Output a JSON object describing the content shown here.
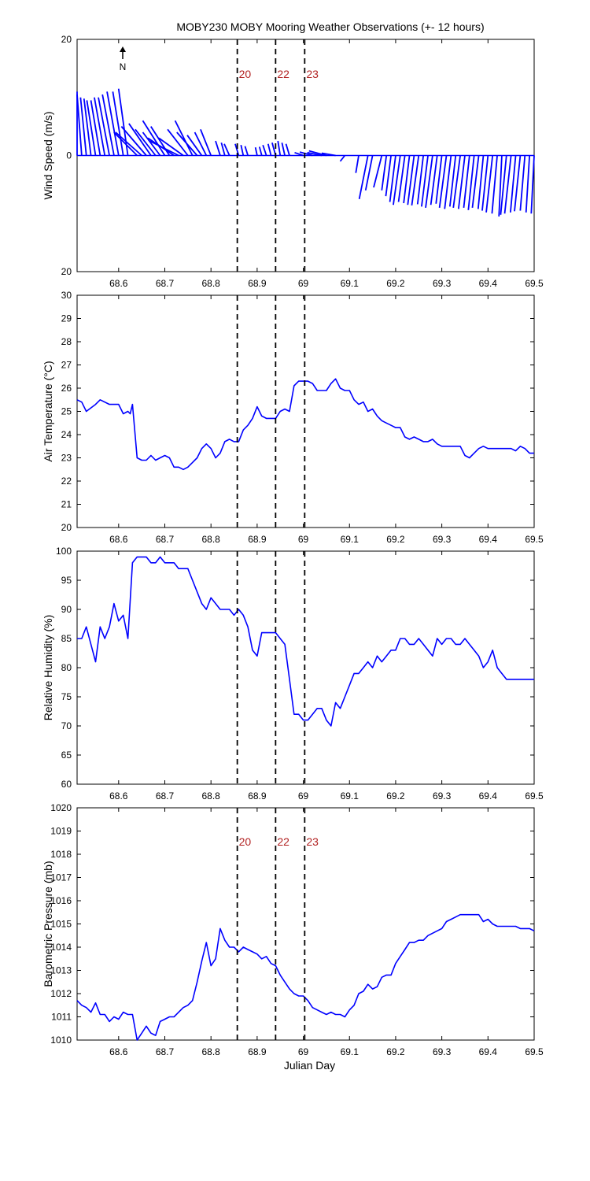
{
  "title": "MOBY230 MOBY Mooring Weather Observations (+- 12 hours)",
  "north_label": "N",
  "colors": {
    "series": "#0000ff",
    "marker_text": "#b22222",
    "axis": "#000000"
  },
  "markers": [
    {
      "x": 68.857,
      "label": "20"
    },
    {
      "x": 68.94,
      "label": "22"
    },
    {
      "x": 69.003,
      "label": "23"
    }
  ],
  "chart_data": [
    {
      "type": "quiver",
      "title": "MOBY230 MOBY Mooring Weather Observations (+- 12 hours)",
      "ylabel": "Wind Speed (m/s)",
      "xlabel": "",
      "xlim": [
        68.51,
        69.5
      ],
      "ylim": [
        -20,
        20
      ],
      "yticklabels": [
        "20",
        "0",
        "20"
      ],
      "xticks": [
        68.6,
        68.7,
        68.8,
        68.9,
        69,
        69.1,
        69.2,
        69.3,
        69.4,
        69.5
      ],
      "series": [
        {
          "x": [
            68.51,
            68.52,
            68.53,
            68.54,
            68.55,
            68.56,
            68.57,
            68.58,
            68.59,
            68.6,
            68.61,
            68.62,
            68.64,
            68.65,
            68.66,
            68.67,
            68.68,
            68.69,
            68.7,
            68.71,
            68.72,
            68.73,
            68.74,
            68.75,
            68.76,
            68.77,
            68.78,
            68.79,
            68.8,
            68.82,
            68.83,
            68.84,
            68.86,
            68.87,
            68.88,
            68.9,
            68.91,
            68.92,
            68.93,
            68.94,
            68.95,
            68.96,
            68.97,
            69.0,
            69.02,
            69.04,
            69.05,
            69.07,
            69.09,
            69.12,
            69.14,
            69.15,
            69.17,
            69.18,
            69.19,
            69.2,
            69.21,
            69.22,
            69.23,
            69.24,
            69.25,
            69.26,
            69.27,
            69.28,
            69.29,
            69.3,
            69.31,
            69.32,
            69.33,
            69.34,
            69.35,
            69.36,
            69.37,
            69.38,
            69.39,
            69.4,
            69.41,
            69.42,
            69.43,
            69.44,
            69.45,
            69.46,
            69.47,
            69.48,
            69.49,
            69.5
          ],
          "u": [
            -0.8,
            -0.9,
            -1.0,
            -1.2,
            -1.5,
            -1.6,
            -1.8,
            -1.9,
            -2.0,
            -2.0,
            -1.8,
            -1.6,
            -4.0,
            -4.5,
            -4.3,
            -3.8,
            -3.5,
            -3.0,
            -3.8,
            -3.2,
            -4.5,
            -5.0,
            -4.2,
            -3.5,
            -3.0,
            -3.5,
            -2.5,
            -2.0,
            -1.8,
            -0.8,
            -0.6,
            -0.9,
            -0.6,
            -0.4,
            -0.5,
            -0.3,
            -0.4,
            -0.6,
            -0.5,
            -0.6,
            -0.4,
            -0.5,
            -0.6,
            -1.5,
            -2.2,
            -2.5,
            -3.0,
            -2.4,
            -0.8,
            -0.5,
            -1.5,
            -1.2,
            -1.4,
            -0.8,
            -0.9,
            -1.0,
            -1.2,
            -1.1,
            -1.0,
            -1.1,
            -1.2,
            -1.0,
            -1.1,
            -1.2,
            -1.1,
            -1.0,
            -1.2,
            -1.1,
            -1.0,
            -1.2,
            -1.1,
            -1.0,
            -1.0,
            -1.1,
            -0.9,
            -1.0,
            -1.1,
            -0.9,
            -0.5,
            -1.0,
            -1.1,
            -0.9,
            -1.0,
            -0.8,
            -0.6,
            -0.5
          ],
          "v": [
            11,
            10.5,
            10,
            9.8,
            9.5,
            9.5,
            10,
            10,
            10.5,
            11,
            11,
            11.5,
            4,
            4,
            5,
            5.5,
            4.5,
            4,
            6,
            5,
            3,
            2.5,
            3,
            4.5,
            6,
            4,
            3.5,
            4,
            4.5,
            2.5,
            2.2,
            2,
            2,
            1.8,
            1.6,
            1.4,
            1.5,
            1.8,
            2,
            2.2,
            2.5,
            2.2,
            2.0,
            0.5,
            0.6,
            0.5,
            0.8,
            0.4,
            -1,
            -3,
            -7.5,
            -6,
            -5.5,
            -6,
            -7,
            -8,
            -8.5,
            -8,
            -8.2,
            -8.5,
            -8.6,
            -8.4,
            -8.8,
            -9,
            -8.5,
            -8.3,
            -9,
            -9.2,
            -8.8,
            -9,
            -9.2,
            -9,
            -9.4,
            -9,
            -9.2,
            -9.5,
            -9.8,
            -10,
            -10.5,
            -10.2,
            -10,
            -9.8,
            -9.6,
            -9.5,
            -9.8,
            -10
          ]
        }
      ]
    },
    {
      "type": "line",
      "ylabel": "Air Temperature (°C)",
      "xlabel": "",
      "xlim": [
        68.51,
        69.5
      ],
      "ylim": [
        20,
        30
      ],
      "yticks": [
        20,
        21,
        22,
        23,
        24,
        25,
        26,
        27,
        28,
        29,
        30
      ],
      "xticks": [
        68.6,
        68.7,
        68.8,
        68.9,
        69,
        69.1,
        69.2,
        69.3,
        69.4,
        69.5
      ],
      "series": [
        {
          "x": [
            68.51,
            68.52,
            68.53,
            68.55,
            68.56,
            68.58,
            68.59,
            68.6,
            68.61,
            68.62,
            68.625,
            68.63,
            68.64,
            68.65,
            68.66,
            68.67,
            68.68,
            68.69,
            68.7,
            68.71,
            68.72,
            68.73,
            68.74,
            68.75,
            68.76,
            68.77,
            68.78,
            68.79,
            68.8,
            68.81,
            68.82,
            68.83,
            68.84,
            68.85,
            68.86,
            68.87,
            68.88,
            68.89,
            68.9,
            68.91,
            68.92,
            68.93,
            68.94,
            68.95,
            68.96,
            68.97,
            68.98,
            68.99,
            69.0,
            69.01,
            69.02,
            69.03,
            69.04,
            69.05,
            69.06,
            69.07,
            69.08,
            69.09,
            69.1,
            69.11,
            69.12,
            69.13,
            69.14,
            69.15,
            69.16,
            69.17,
            69.18,
            69.19,
            69.2,
            69.21,
            69.22,
            69.23,
            69.24,
            69.25,
            69.26,
            69.27,
            69.28,
            69.29,
            69.3,
            69.31,
            69.32,
            69.33,
            69.34,
            69.35,
            69.36,
            69.37,
            69.38,
            69.39,
            69.4,
            69.41,
            69.42,
            69.43,
            69.44,
            69.45,
            69.46,
            69.47,
            69.48,
            69.49,
            69.5
          ],
          "y": [
            25.5,
            25.4,
            25.0,
            25.3,
            25.5,
            25.3,
            25.3,
            25.3,
            24.9,
            25.0,
            24.9,
            25.3,
            23.0,
            22.9,
            22.9,
            23.1,
            22.9,
            23.0,
            23.1,
            23.0,
            22.6,
            22.6,
            22.5,
            22.6,
            22.8,
            23.0,
            23.4,
            23.6,
            23.4,
            23.0,
            23.2,
            23.7,
            23.8,
            23.7,
            23.7,
            24.2,
            24.4,
            24.7,
            25.2,
            24.8,
            24.7,
            24.7,
            24.7,
            25.0,
            25.1,
            25.0,
            26.1,
            26.3,
            26.3,
            26.3,
            26.2,
            25.9,
            25.9,
            25.9,
            26.2,
            26.4,
            26.0,
            25.9,
            25.9,
            25.5,
            25.3,
            25.4,
            25.0,
            25.1,
            24.8,
            24.6,
            24.5,
            24.4,
            24.3,
            24.3,
            23.9,
            23.8,
            23.9,
            23.8,
            23.7,
            23.7,
            23.8,
            23.6,
            23.5,
            23.5,
            23.5,
            23.5,
            23.5,
            23.1,
            23.0,
            23.2,
            23.4,
            23.5,
            23.4,
            23.4,
            23.4,
            23.4,
            23.4,
            23.4,
            23.3,
            23.5,
            23.4,
            23.2,
            23.2
          ]
        }
      ]
    },
    {
      "type": "line",
      "ylabel": "Relative Humidity (%)",
      "xlabel": "",
      "xlim": [
        68.51,
        69.5
      ],
      "ylim": [
        60,
        100
      ],
      "yticks": [
        60,
        65,
        70,
        75,
        80,
        85,
        90,
        95,
        100
      ],
      "xticks": [
        68.6,
        68.7,
        68.8,
        68.9,
        69,
        69.1,
        69.2,
        69.3,
        69.4,
        69.5
      ],
      "series": [
        {
          "x": [
            68.51,
            68.52,
            68.53,
            68.55,
            68.56,
            68.57,
            68.58,
            68.59,
            68.6,
            68.61,
            68.62,
            68.63,
            68.64,
            68.65,
            68.66,
            68.67,
            68.68,
            68.69,
            68.7,
            68.71,
            68.72,
            68.73,
            68.74,
            68.75,
            68.76,
            68.77,
            68.78,
            68.79,
            68.8,
            68.81,
            68.82,
            68.83,
            68.84,
            68.85,
            68.86,
            68.87,
            68.88,
            68.89,
            68.9,
            68.91,
            68.92,
            68.93,
            68.94,
            68.95,
            68.96,
            68.97,
            68.98,
            68.99,
            69.0,
            69.01,
            69.02,
            69.03,
            69.04,
            69.05,
            69.06,
            69.07,
            69.08,
            69.09,
            69.1,
            69.11,
            69.12,
            69.13,
            69.14,
            69.15,
            69.16,
            69.17,
            69.18,
            69.19,
            69.2,
            69.21,
            69.22,
            69.23,
            69.24,
            69.25,
            69.26,
            69.27,
            69.28,
            69.29,
            69.3,
            69.31,
            69.32,
            69.33,
            69.34,
            69.35,
            69.36,
            69.37,
            69.38,
            69.39,
            69.4,
            69.41,
            69.42,
            69.43,
            69.44,
            69.45,
            69.46,
            69.47,
            69.48,
            69.49,
            69.5
          ],
          "y": [
            85,
            85,
            87,
            81,
            87,
            85,
            87,
            91,
            88,
            89,
            85,
            98,
            99,
            99,
            99,
            98,
            98,
            99,
            98,
            98,
            98,
            97,
            97,
            97,
            95,
            93,
            91,
            90,
            92,
            91,
            90,
            90,
            90,
            89,
            90,
            89,
            87,
            83,
            82,
            86,
            86,
            86,
            86,
            85,
            84,
            78,
            72,
            72,
            71,
            71,
            72,
            73,
            73,
            71,
            70,
            74,
            73,
            75,
            77,
            79,
            79,
            80,
            81,
            80,
            82,
            81,
            82,
            83,
            83,
            85,
            85,
            84,
            84,
            85,
            84,
            83,
            82,
            85,
            84,
            85,
            85,
            84,
            84,
            85,
            84,
            83,
            82,
            80,
            81,
            83,
            80,
            79,
            78,
            78,
            78,
            78,
            78,
            78,
            78
          ]
        }
      ]
    },
    {
      "type": "line",
      "ylabel": "Barometric Pressure (mb)",
      "xlabel": "Julian Day",
      "xlim": [
        68.51,
        69.5
      ],
      "ylim": [
        1010,
        1020
      ],
      "yticks": [
        1010,
        1011,
        1012,
        1013,
        1014,
        1015,
        1016,
        1017,
        1018,
        1019,
        1020
      ],
      "xticks": [
        68.6,
        68.7,
        68.8,
        68.9,
        69,
        69.1,
        69.2,
        69.3,
        69.4,
        69.5
      ],
      "series": [
        {
          "x": [
            68.51,
            68.52,
            68.53,
            68.54,
            68.55,
            68.56,
            68.57,
            68.58,
            68.59,
            68.6,
            68.61,
            68.62,
            68.63,
            68.64,
            68.65,
            68.66,
            68.67,
            68.68,
            68.69,
            68.7,
            68.71,
            68.72,
            68.73,
            68.74,
            68.75,
            68.76,
            68.77,
            68.78,
            68.79,
            68.8,
            68.81,
            68.82,
            68.83,
            68.84,
            68.85,
            68.86,
            68.87,
            68.88,
            68.89,
            68.9,
            68.91,
            68.92,
            68.93,
            68.94,
            68.95,
            68.96,
            68.97,
            68.98,
            68.99,
            69.0,
            69.01,
            69.02,
            69.03,
            69.04,
            69.05,
            69.06,
            69.07,
            69.08,
            69.09,
            69.1,
            69.11,
            69.12,
            69.13,
            69.14,
            69.15,
            69.16,
            69.17,
            69.18,
            69.19,
            69.2,
            69.21,
            69.22,
            69.23,
            69.24,
            69.25,
            69.26,
            69.27,
            69.28,
            69.29,
            69.3,
            69.31,
            69.32,
            69.33,
            69.34,
            69.35,
            69.36,
            69.37,
            69.38,
            69.39,
            69.4,
            69.41,
            69.42,
            69.43,
            69.44,
            69.45,
            69.46,
            69.47,
            69.48,
            69.49,
            69.5
          ],
          "y": [
            1011.7,
            1011.5,
            1011.4,
            1011.2,
            1011.6,
            1011.1,
            1011.1,
            1010.8,
            1011.0,
            1010.9,
            1011.2,
            1011.1,
            1011.1,
            1010.0,
            1010.3,
            1010.6,
            1010.3,
            1010.2,
            1010.8,
            1010.9,
            1011.0,
            1011.0,
            1011.2,
            1011.4,
            1011.5,
            1011.7,
            1012.5,
            1013.4,
            1014.2,
            1013.2,
            1013.5,
            1014.8,
            1014.3,
            1014.0,
            1014.0,
            1013.8,
            1014.0,
            1013.9,
            1013.8,
            1013.7,
            1013.5,
            1013.6,
            1013.3,
            1013.2,
            1012.8,
            1012.5,
            1012.2,
            1012.0,
            1011.9,
            1011.9,
            1011.7,
            1011.4,
            1011.3,
            1011.2,
            1011.1,
            1011.2,
            1011.1,
            1011.1,
            1011.0,
            1011.3,
            1011.5,
            1012.0,
            1012.1,
            1012.4,
            1012.2,
            1012.3,
            1012.7,
            1012.8,
            1012.8,
            1013.3,
            1013.6,
            1013.9,
            1014.2,
            1014.2,
            1014.3,
            1014.3,
            1014.5,
            1014.6,
            1014.7,
            1014.8,
            1015.1,
            1015.2,
            1015.3,
            1015.4,
            1015.4,
            1015.4,
            1015.4,
            1015.4,
            1015.1,
            1015.2,
            1015.0,
            1014.9,
            1014.9,
            1014.9,
            1014.9,
            1014.9,
            1014.8,
            1014.8,
            1014.8,
            1014.7
          ]
        }
      ]
    }
  ]
}
